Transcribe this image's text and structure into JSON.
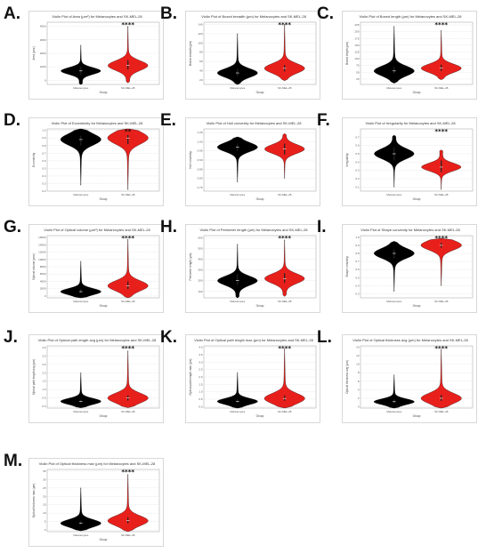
{
  "colors": {
    "group1": "#000000",
    "group2": "#e8201c",
    "grid": "#cfcfcf",
    "median": "#ffffff"
  },
  "chart_data": [
    {
      "label": "A.",
      "type": "violin",
      "title": "Violin Plot of Area (μm²) for Melanocytes and SK-MEL-28",
      "xlabel": "Group",
      "ylabel": "Area (μm²)",
      "categories": [
        "Melanocytes",
        "SK-MEL-28"
      ],
      "yticks": [
        "0",
        "1000",
        "2000",
        "3000",
        "4000"
      ],
      "ylim": [
        -300,
        4300
      ],
      "significance": "****",
      "series": [
        {
          "median": 700,
          "q1": 400,
          "q3": 1000,
          "max": 2600
        },
        {
          "median": 1100,
          "q1": 800,
          "q3": 1500,
          "max": 4000
        }
      ]
    },
    {
      "label": "B.",
      "type": "violin",
      "title": "Violin Plot of Boxed breadth (μm) for Melanocytes and SK-MEL-28",
      "xlabel": "Group",
      "ylabel": "Boxed breadth (μm)",
      "categories": [
        "Melanocytes",
        "SK-MEL-28"
      ],
      "yticks": [
        "20",
        "40",
        "60",
        "80",
        "100",
        "120",
        "140"
      ],
      "ylim": [
        10,
        145
      ],
      "significance": "****",
      "series": [
        {
          "median": 35,
          "q1": 28,
          "q3": 44,
          "max": 120
        },
        {
          "median": 45,
          "q1": 38,
          "q3": 52,
          "max": 140
        }
      ]
    },
    {
      "label": "C.",
      "type": "violin",
      "title": "Violin Plot of Boxed length (μm) for Melanocytes and SK-MEL-28",
      "xlabel": "Group",
      "ylabel": "Boxed length (μm)",
      "categories": [
        "Melanocytes",
        "SK-MEL-28"
      ],
      "yticks": [
        "25",
        "50",
        "75",
        "100",
        "125",
        "150",
        "175",
        "200",
        "225"
      ],
      "ylim": [
        5,
        235
      ],
      "significance": "****",
      "series": [
        {
          "median": 55,
          "q1": 45,
          "q3": 70,
          "max": 220
        },
        {
          "median": 65,
          "q1": 55,
          "q3": 78,
          "max": 205
        }
      ]
    },
    {
      "label": "D.",
      "type": "violin",
      "title": "Violin Plot of Eccentricity for Melanocytes and SK-MEL-28",
      "xlabel": "Group",
      "ylabel": "Eccentricity",
      "categories": [
        "Melanocytes",
        "SK-MEL-28"
      ],
      "yticks": [
        "0.2",
        "0.3",
        "0.4",
        "0.5",
        "0.6",
        "0.7",
        "0.8",
        "0.9",
        "1.0"
      ],
      "ylim": [
        0.2,
        1.02
      ],
      "significance": "**",
      "series": [
        {
          "median": 0.88,
          "q1": 0.8,
          "q3": 0.93,
          "min": 0.28
        },
        {
          "median": 0.9,
          "q1": 0.82,
          "q3": 0.94,
          "min": 0.22
        }
      ]
    },
    {
      "label": "E.",
      "type": "violin",
      "title": "Violin Plot of Hull convexity for Melanocytes and SK-MEL-28",
      "xlabel": "Group",
      "ylabel": "Hull convexity",
      "categories": [
        "Melanocytes",
        "SK-MEL-28"
      ],
      "yticks": [
        "0.75",
        "0.80",
        "0.85",
        "0.90",
        "0.95",
        "1.00",
        "1.05"
      ],
      "ylim": [
        0.73,
        1.07
      ],
      "significance": "",
      "series": [
        {
          "median": 0.97,
          "q1": 0.95,
          "q3": 0.99,
          "min": 0.78
        },
        {
          "median": 0.96,
          "q1": 0.93,
          "q3": 0.99,
          "min": 0.8
        }
      ]
    },
    {
      "label": "F.",
      "type": "violin",
      "title": "Violin Plot of Irregularity for Melanocytes and SK-MEL-28",
      "xlabel": "Group",
      "ylabel": "Irregularity",
      "categories": [
        "Melanocytes",
        "SK-MEL-28"
      ],
      "yticks": [
        "0.1",
        "0.2",
        "0.3",
        "0.4",
        "0.5",
        "0.6",
        "0.7"
      ],
      "ylim": [
        0.05,
        0.8
      ],
      "significance": "****",
      "series": [
        {
          "median": 0.5,
          "q1": 0.42,
          "q3": 0.58,
          "min": 0.1
        },
        {
          "median": 0.34,
          "q1": 0.28,
          "q3": 0.42,
          "min": 0.07
        }
      ]
    },
    {
      "label": "G.",
      "type": "violin",
      "title": "Violin Plot of Optical volume (μm³) for Melanocytes and SK-MEL-28",
      "xlabel": "Group",
      "ylabel": "Optical volume (μm³)",
      "categories": [
        "Melanocytes",
        "SK-MEL-28"
      ],
      "yticks": [
        "0",
        "2000",
        "4000",
        "6000",
        "8000",
        "10000",
        "12000",
        "14000",
        "16000"
      ],
      "ylim": [
        -500,
        16500
      ],
      "significance": "****",
      "series": [
        {
          "median": 1200,
          "q1": 700,
          "q3": 1900,
          "max": 9500
        },
        {
          "median": 2800,
          "q1": 1900,
          "q3": 4000,
          "max": 15500
        }
      ]
    },
    {
      "label": "H.",
      "type": "violin",
      "title": "Violin Plot of Perimeter length (μm) for Melanocytes and SK-MEL-28",
      "xlabel": "Group",
      "ylabel": "Perimeter length (μm)",
      "categories": [
        "Melanocytes",
        "SK-MEL-28"
      ],
      "yticks": [
        "100",
        "200",
        "300",
        "400",
        "500",
        "600"
      ],
      "ylim": [
        40,
        620
      ],
      "significance": "****",
      "series": [
        {
          "median": 200,
          "q1": 160,
          "q3": 260,
          "max": 540
        },
        {
          "median": 220,
          "q1": 180,
          "q3": 270,
          "max": 580
        }
      ]
    },
    {
      "label": "I.",
      "type": "violin",
      "title": "Violin Plot of Shape convexity for Melanocytes and SK-MEL-28",
      "xlabel": "Group",
      "ylabel": "Shape convexity",
      "categories": [
        "Melanocytes",
        "SK-MEL-28"
      ],
      "yticks": [
        "0.3",
        "0.4",
        "0.5",
        "0.6",
        "0.7",
        "0.8",
        "0.9",
        "1.0"
      ],
      "ylim": [
        0.25,
        1.02
      ],
      "significance": "****",
      "series": [
        {
          "median": 0.8,
          "q1": 0.74,
          "q3": 0.85,
          "min": 0.33
        },
        {
          "median": 0.9,
          "q1": 0.87,
          "q3": 0.93,
          "min": 0.4
        }
      ]
    },
    {
      "label": "J.",
      "type": "violin",
      "title": "Violin Plot of Optical path length avg (μm) for Melanocytes and SK-MEL-28",
      "xlabel": "Group",
      "ylabel": "Optical path length avg (μm)",
      "categories": [
        "Melanocytes",
        "SK-MEL-28"
      ],
      "yticks": [
        "0.0",
        "0.5",
        "1.0",
        "1.5",
        "2.0",
        "2.5",
        "3.0",
        "3.5"
      ],
      "ylim": [
        -0.1,
        3.6
      ],
      "significance": "****",
      "series": [
        {
          "median": 0.3,
          "q1": 0.2,
          "q3": 0.4,
          "max": 2.0
        },
        {
          "median": 0.5,
          "q1": 0.35,
          "q3": 0.65,
          "max": 3.3
        }
      ]
    },
    {
      "label": "K.",
      "type": "violin",
      "title": "Violin Plot of Optical path length max (μm) for Melanocytes and SK-MEL-28",
      "xlabel": "Group",
      "ylabel": "Optical path length max (μm)",
      "categories": [
        "Melanocytes",
        "SK-MEL-28"
      ],
      "yticks": [
        "0.0",
        "0.5",
        "1.0",
        "1.5",
        "2.0",
        "2.5",
        "3.0",
        "3.5",
        "4.0"
      ],
      "ylim": [
        -0.1,
        4.1
      ],
      "significance": "****",
      "series": [
        {
          "median": 0.35,
          "q1": 0.25,
          "q3": 0.5,
          "max": 2.3
        },
        {
          "median": 0.55,
          "q1": 0.4,
          "q3": 0.75,
          "max": 3.9
        }
      ]
    },
    {
      "label": "L.",
      "type": "violin",
      "title": "Violin Plot of Optical thickness avg (μm) for Melanocytes and SK-MEL-28",
      "xlabel": "Group",
      "ylabel": "Optical thickness avg (μm)",
      "categories": [
        "Melanocytes",
        "SK-MEL-28"
      ],
      "yticks": [
        "0",
        "2",
        "4",
        "6",
        "8",
        "10",
        "12",
        "14"
      ],
      "ylim": [
        -0.3,
        14.3
      ],
      "significance": "****",
      "series": [
        {
          "median": 1.2,
          "q1": 0.8,
          "q3": 1.7,
          "max": 7.5
        },
        {
          "median": 2.0,
          "q1": 1.4,
          "q3": 2.8,
          "max": 13.5
        }
      ]
    },
    {
      "label": "M.",
      "type": "violin",
      "title": "Violin Plot of Optical thickness max (μm) for Melanocytes and SK-MEL-28",
      "xlabel": "Group",
      "ylabel": "Optical thickness max (μm)",
      "categories": [
        "Melanocytes",
        "SK-MEL-28"
      ],
      "yticks": [
        "0",
        "5",
        "10",
        "15",
        "20",
        "25",
        "30",
        "35"
      ],
      "ylim": [
        -1,
        36
      ],
      "significance": "****",
      "series": [
        {
          "median": 4,
          "q1": 3,
          "q3": 5.5,
          "max": 25
        },
        {
          "median": 5.5,
          "q1": 4,
          "q3": 7.5,
          "max": 33
        }
      ]
    }
  ]
}
